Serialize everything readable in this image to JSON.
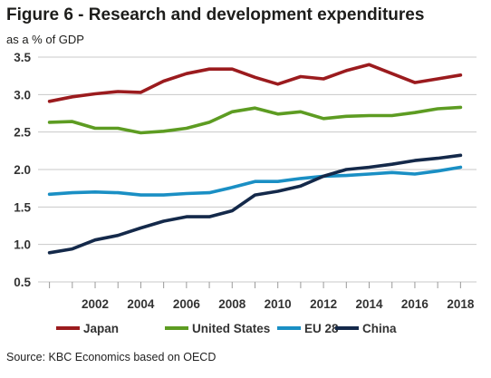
{
  "header": {
    "title": "Figure 6 - Research and development expenditures",
    "subtitle": "as a % of GDP"
  },
  "source": "Source: KBC Economics based on OECD",
  "chart_data": {
    "type": "line",
    "title": "Figure 6 - Research and development expenditures",
    "subtitle": "as a % of GDP",
    "xlabel": "",
    "ylabel": "",
    "x": [
      2000,
      2001,
      2002,
      2003,
      2004,
      2005,
      2006,
      2007,
      2008,
      2009,
      2010,
      2011,
      2012,
      2013,
      2014,
      2015,
      2016,
      2017,
      2018
    ],
    "xticks": [
      "2002",
      "2004",
      "2006",
      "2008",
      "2010",
      "2012",
      "2014",
      "2016",
      "2018"
    ],
    "yticks": [
      "0.5",
      "1.0",
      "1.5",
      "2.0",
      "2.5",
      "3.0",
      "3.5"
    ],
    "ylim": [
      0.5,
      3.5
    ],
    "xlim": [
      1999.5,
      2018.7
    ],
    "grid": "horizontal",
    "legend_position": "bottom",
    "series": [
      {
        "name": "Japan",
        "color": "#9b1b1e",
        "values": [
          2.91,
          2.97,
          3.01,
          3.04,
          3.03,
          3.18,
          3.28,
          3.34,
          3.34,
          3.23,
          3.14,
          3.24,
          3.21,
          3.32,
          3.4,
          3.28,
          3.16,
          3.21,
          3.26
        ]
      },
      {
        "name": "United States",
        "color": "#5d9c22",
        "values": [
          2.63,
          2.64,
          2.55,
          2.55,
          2.49,
          2.51,
          2.55,
          2.63,
          2.77,
          2.82,
          2.74,
          2.77,
          2.68,
          2.71,
          2.72,
          2.72,
          2.76,
          2.81,
          2.83
        ]
      },
      {
        "name": "EU 28",
        "color": "#1a8fc4",
        "values": [
          1.67,
          1.69,
          1.7,
          1.69,
          1.66,
          1.66,
          1.68,
          1.69,
          1.76,
          1.84,
          1.84,
          1.88,
          1.91,
          1.92,
          1.94,
          1.96,
          1.94,
          1.98,
          2.03
        ]
      },
      {
        "name": "China",
        "color": "#14294a",
        "values": [
          0.89,
          0.94,
          1.06,
          1.12,
          1.22,
          1.31,
          1.37,
          1.37,
          1.45,
          1.66,
          1.71,
          1.78,
          1.91,
          2.0,
          2.03,
          2.07,
          2.12,
          2.15,
          2.19
        ]
      }
    ]
  }
}
